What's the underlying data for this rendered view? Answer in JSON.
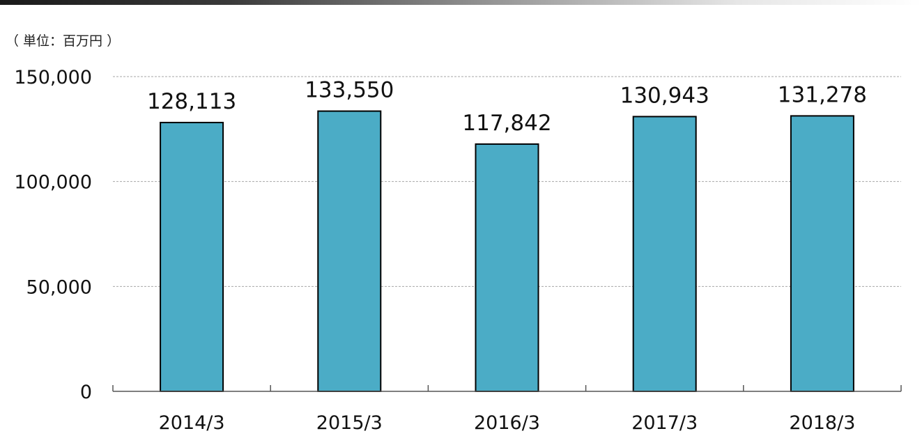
{
  "unit_label": "（ 単位：百万円 ）",
  "colors": {
    "bar_fill": "#4bacc6",
    "bar_stroke": "#000000",
    "grid": "#a6a6a6",
    "axis": "#555555"
  },
  "chart_data": {
    "type": "bar",
    "categories": [
      "2014/3",
      "2015/3",
      "2016/3",
      "2017/3",
      "2018/3"
    ],
    "values": [
      128113,
      133550,
      117842,
      130943,
      131278
    ],
    "data_labels": [
      "128,113",
      "133,550",
      "117,842",
      "130,943",
      "131,278"
    ],
    "yticks": [
      0,
      50000,
      100000,
      150000
    ],
    "ytick_labels": [
      "0",
      "50,000",
      "100,000",
      "150,000"
    ],
    "ylim": [
      0,
      150000
    ],
    "grid": true,
    "legend": "none"
  }
}
